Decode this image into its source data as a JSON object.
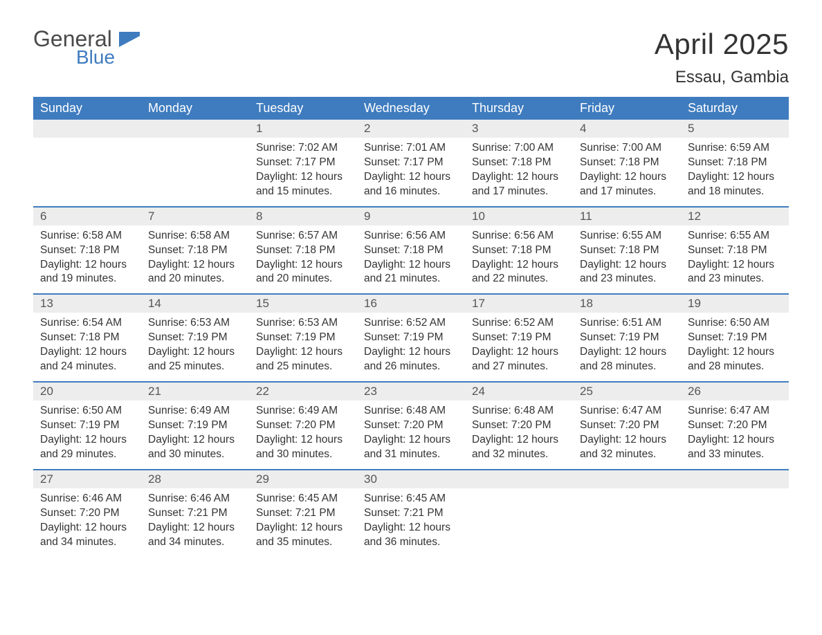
{
  "brand": {
    "word1": "General",
    "word2": "Blue"
  },
  "title": "April 2025",
  "location": "Essau, Gambia",
  "colors": {
    "header_bg": "#3f7cbf",
    "header_text": "#ffffff",
    "daynum_bg": "#ededed",
    "week_divider": "#3f7cbf",
    "body_text": "#333333",
    "logo_gray": "#4a4a4a",
    "logo_blue": "#3f7cbf",
    "background": "#ffffff"
  },
  "typography": {
    "title_fontsize": 42,
    "location_fontsize": 24,
    "weekday_fontsize": 18,
    "daynum_fontsize": 17,
    "body_fontsize": 15.5
  },
  "layout": {
    "columns": 7,
    "rows": 5,
    "first_weekday_index": 2
  },
  "weekdays": [
    "Sunday",
    "Monday",
    "Tuesday",
    "Wednesday",
    "Thursday",
    "Friday",
    "Saturday"
  ],
  "days": [
    {
      "n": 1,
      "sunrise": "7:02 AM",
      "sunset": "7:17 PM",
      "daylight": "12 hours and 15 minutes."
    },
    {
      "n": 2,
      "sunrise": "7:01 AM",
      "sunset": "7:17 PM",
      "daylight": "12 hours and 16 minutes."
    },
    {
      "n": 3,
      "sunrise": "7:00 AM",
      "sunset": "7:18 PM",
      "daylight": "12 hours and 17 minutes."
    },
    {
      "n": 4,
      "sunrise": "7:00 AM",
      "sunset": "7:18 PM",
      "daylight": "12 hours and 17 minutes."
    },
    {
      "n": 5,
      "sunrise": "6:59 AM",
      "sunset": "7:18 PM",
      "daylight": "12 hours and 18 minutes."
    },
    {
      "n": 6,
      "sunrise": "6:58 AM",
      "sunset": "7:18 PM",
      "daylight": "12 hours and 19 minutes."
    },
    {
      "n": 7,
      "sunrise": "6:58 AM",
      "sunset": "7:18 PM",
      "daylight": "12 hours and 20 minutes."
    },
    {
      "n": 8,
      "sunrise": "6:57 AM",
      "sunset": "7:18 PM",
      "daylight": "12 hours and 20 minutes."
    },
    {
      "n": 9,
      "sunrise": "6:56 AM",
      "sunset": "7:18 PM",
      "daylight": "12 hours and 21 minutes."
    },
    {
      "n": 10,
      "sunrise": "6:56 AM",
      "sunset": "7:18 PM",
      "daylight": "12 hours and 22 minutes."
    },
    {
      "n": 11,
      "sunrise": "6:55 AM",
      "sunset": "7:18 PM",
      "daylight": "12 hours and 23 minutes."
    },
    {
      "n": 12,
      "sunrise": "6:55 AM",
      "sunset": "7:18 PM",
      "daylight": "12 hours and 23 minutes."
    },
    {
      "n": 13,
      "sunrise": "6:54 AM",
      "sunset": "7:18 PM",
      "daylight": "12 hours and 24 minutes."
    },
    {
      "n": 14,
      "sunrise": "6:53 AM",
      "sunset": "7:19 PM",
      "daylight": "12 hours and 25 minutes."
    },
    {
      "n": 15,
      "sunrise": "6:53 AM",
      "sunset": "7:19 PM",
      "daylight": "12 hours and 25 minutes."
    },
    {
      "n": 16,
      "sunrise": "6:52 AM",
      "sunset": "7:19 PM",
      "daylight": "12 hours and 26 minutes."
    },
    {
      "n": 17,
      "sunrise": "6:52 AM",
      "sunset": "7:19 PM",
      "daylight": "12 hours and 27 minutes."
    },
    {
      "n": 18,
      "sunrise": "6:51 AM",
      "sunset": "7:19 PM",
      "daylight": "12 hours and 28 minutes."
    },
    {
      "n": 19,
      "sunrise": "6:50 AM",
      "sunset": "7:19 PM",
      "daylight": "12 hours and 28 minutes."
    },
    {
      "n": 20,
      "sunrise": "6:50 AM",
      "sunset": "7:19 PM",
      "daylight": "12 hours and 29 minutes."
    },
    {
      "n": 21,
      "sunrise": "6:49 AM",
      "sunset": "7:19 PM",
      "daylight": "12 hours and 30 minutes."
    },
    {
      "n": 22,
      "sunrise": "6:49 AM",
      "sunset": "7:20 PM",
      "daylight": "12 hours and 30 minutes."
    },
    {
      "n": 23,
      "sunrise": "6:48 AM",
      "sunset": "7:20 PM",
      "daylight": "12 hours and 31 minutes."
    },
    {
      "n": 24,
      "sunrise": "6:48 AM",
      "sunset": "7:20 PM",
      "daylight": "12 hours and 32 minutes."
    },
    {
      "n": 25,
      "sunrise": "6:47 AM",
      "sunset": "7:20 PM",
      "daylight": "12 hours and 32 minutes."
    },
    {
      "n": 26,
      "sunrise": "6:47 AM",
      "sunset": "7:20 PM",
      "daylight": "12 hours and 33 minutes."
    },
    {
      "n": 27,
      "sunrise": "6:46 AM",
      "sunset": "7:20 PM",
      "daylight": "12 hours and 34 minutes."
    },
    {
      "n": 28,
      "sunrise": "6:46 AM",
      "sunset": "7:21 PM",
      "daylight": "12 hours and 34 minutes."
    },
    {
      "n": 29,
      "sunrise": "6:45 AM",
      "sunset": "7:21 PM",
      "daylight": "12 hours and 35 minutes."
    },
    {
      "n": 30,
      "sunrise": "6:45 AM",
      "sunset": "7:21 PM",
      "daylight": "12 hours and 36 minutes."
    }
  ],
  "labels": {
    "sunrise_prefix": "Sunrise: ",
    "sunset_prefix": "Sunset: ",
    "daylight_prefix": "Daylight: "
  }
}
